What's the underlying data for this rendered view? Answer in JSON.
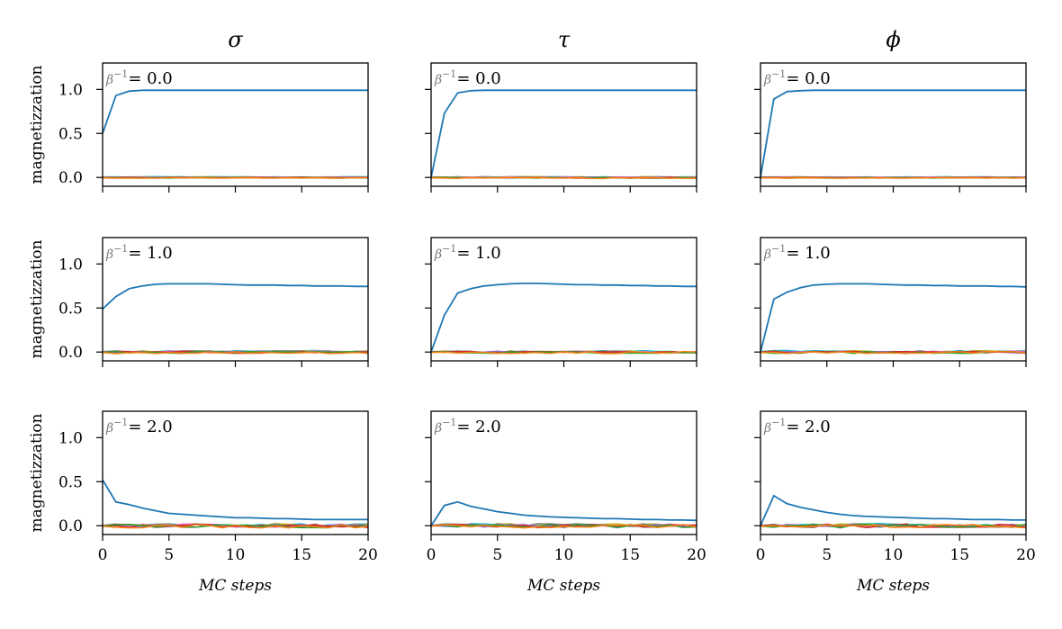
{
  "chart_data": {
    "type": "line",
    "layout": "3x3 grid of small multiples (rows = temperature, columns = field)",
    "columns": [
      "σ",
      "τ",
      "ϕ"
    ],
    "rows": [
      {
        "temp_symbol": "β",
        "temp_exp": "−1",
        "temp_value": "= 0.0"
      },
      {
        "temp_symbol": "β",
        "temp_exp": "−1",
        "temp_value": "= 1.0"
      },
      {
        "temp_symbol": "β",
        "temp_exp": "−1",
        "temp_value": "= 2.0"
      }
    ],
    "ylabel": "magnetizzation",
    "xlabel": "MC steps",
    "xlim": [
      0,
      20
    ],
    "ylim": [
      -0.1,
      1.3
    ],
    "xticks": [
      0,
      5,
      10,
      15,
      20
    ],
    "yticks": [
      0.0,
      0.5,
      1.0
    ],
    "ytick_labels": [
      "0.0",
      "0.5",
      "1.0"
    ],
    "xtick_labels": [
      "0",
      "5",
      "10",
      "15",
      "20"
    ],
    "x": [
      0,
      1,
      2,
      3,
      4,
      5,
      6,
      7,
      8,
      9,
      10,
      11,
      12,
      13,
      14,
      15,
      16,
      17,
      18,
      19,
      20
    ],
    "colors": [
      "#1f77b4",
      "#ff7f0e",
      "#2ca02c",
      "#d62728",
      "#9467bd",
      "#8c564b",
      "#e377c2",
      "#7f7f7f",
      "#bcbd22",
      "#17becf"
    ],
    "panels": [
      {
        "row": 0,
        "col": 0,
        "main": [
          0.5,
          0.93,
          0.98,
          0.99,
          0.99,
          0.99,
          0.99,
          0.99,
          0.99,
          0.99,
          0.99,
          0.99,
          0.99,
          0.99,
          0.99,
          0.99,
          0.99,
          0.99,
          0.99,
          0.99,
          0.99
        ],
        "noise": 0.004
      },
      {
        "row": 0,
        "col": 1,
        "main": [
          0.0,
          0.73,
          0.96,
          0.985,
          0.99,
          0.99,
          0.99,
          0.99,
          0.99,
          0.99,
          0.99,
          0.99,
          0.99,
          0.99,
          0.99,
          0.99,
          0.99,
          0.99,
          0.99,
          0.99,
          0.99
        ],
        "noise": 0.006
      },
      {
        "row": 0,
        "col": 2,
        "main": [
          0.0,
          0.89,
          0.975,
          0.985,
          0.99,
          0.99,
          0.99,
          0.99,
          0.99,
          0.99,
          0.99,
          0.99,
          0.99,
          0.99,
          0.99,
          0.99,
          0.99,
          0.99,
          0.99,
          0.99,
          0.99
        ],
        "noise": 0.004
      },
      {
        "row": 1,
        "col": 0,
        "main": [
          0.49,
          0.63,
          0.72,
          0.75,
          0.77,
          0.775,
          0.775,
          0.775,
          0.775,
          0.77,
          0.765,
          0.76,
          0.76,
          0.76,
          0.755,
          0.755,
          0.75,
          0.75,
          0.75,
          0.745,
          0.745
        ],
        "noise": 0.012
      },
      {
        "row": 1,
        "col": 1,
        "main": [
          0.0,
          0.42,
          0.67,
          0.72,
          0.75,
          0.765,
          0.775,
          0.78,
          0.78,
          0.775,
          0.77,
          0.765,
          0.765,
          0.76,
          0.76,
          0.755,
          0.755,
          0.75,
          0.75,
          0.745,
          0.745
        ],
        "noise": 0.012
      },
      {
        "row": 1,
        "col": 2,
        "main": [
          0.0,
          0.6,
          0.68,
          0.73,
          0.76,
          0.77,
          0.775,
          0.775,
          0.775,
          0.77,
          0.765,
          0.76,
          0.76,
          0.755,
          0.755,
          0.75,
          0.75,
          0.75,
          0.745,
          0.745,
          0.74
        ],
        "noise": 0.012
      },
      {
        "row": 2,
        "col": 0,
        "main": [
          0.52,
          0.27,
          0.24,
          0.2,
          0.17,
          0.14,
          0.13,
          0.12,
          0.11,
          0.1,
          0.09,
          0.09,
          0.085,
          0.08,
          0.08,
          0.075,
          0.07,
          0.07,
          0.07,
          0.07,
          0.07
        ],
        "noise": 0.02
      },
      {
        "row": 2,
        "col": 1,
        "main": [
          0.0,
          0.23,
          0.27,
          0.22,
          0.19,
          0.16,
          0.14,
          0.12,
          0.11,
          0.1,
          0.095,
          0.09,
          0.085,
          0.08,
          0.08,
          0.075,
          0.07,
          0.07,
          0.065,
          0.065,
          0.06
        ],
        "noise": 0.02
      },
      {
        "row": 2,
        "col": 2,
        "main": [
          0.0,
          0.34,
          0.25,
          0.21,
          0.18,
          0.15,
          0.13,
          0.115,
          0.105,
          0.1,
          0.095,
          0.09,
          0.085,
          0.08,
          0.08,
          0.075,
          0.07,
          0.07,
          0.07,
          0.065,
          0.065
        ],
        "noise": 0.02
      }
    ]
  }
}
